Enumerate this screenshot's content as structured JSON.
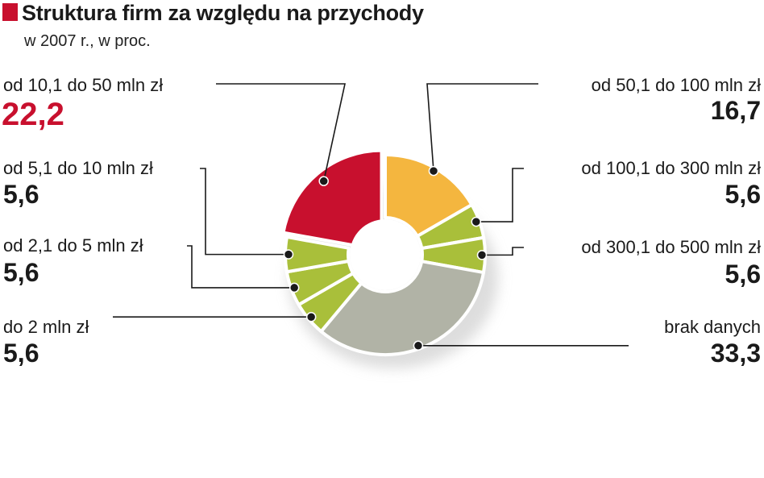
{
  "header": {
    "title": "Struktura firm za względu na przychody",
    "subtitle": "w 2007 r., w proc."
  },
  "colors": {
    "accent": "#c8102e",
    "orange": "#f4b63f",
    "green": "#a9bf3a",
    "gray": "#b1b3a6"
  },
  "chart_data": {
    "type": "pie",
    "title": "Struktura firm za względu na przychody",
    "subtitle": "w 2007 r., w proc.",
    "donut": true,
    "slices": [
      {
        "label": "od 50,1 do 100 mln zł",
        "value": 16.7,
        "value_text": "16,7",
        "color": "#f4b63f"
      },
      {
        "label": "od 100,1 do 300 mln zł",
        "value": 5.6,
        "value_text": "5,6",
        "color": "#a9bf3a"
      },
      {
        "label": "od 300,1 do 500 mln zł",
        "value": 5.6,
        "value_text": "5,6",
        "color": "#a9bf3a"
      },
      {
        "label": "brak danych",
        "value": 33.3,
        "value_text": "33,3",
        "color": "#b1b3a6"
      },
      {
        "label": "do 2 mln zł",
        "value": 5.6,
        "value_text": "5,6",
        "color": "#a9bf3a"
      },
      {
        "label": "od 2,1 do 5 mln zł",
        "value": 5.6,
        "value_text": "5,6",
        "color": "#a9bf3a"
      },
      {
        "label": "od 5,1 do 10 mln zł",
        "value": 5.6,
        "value_text": "5,6",
        "color": "#a9bf3a"
      },
      {
        "label": "od 10,1 do 50 mln zł",
        "value": 22.2,
        "value_text": "22,2",
        "color": "#c8102e"
      }
    ]
  }
}
